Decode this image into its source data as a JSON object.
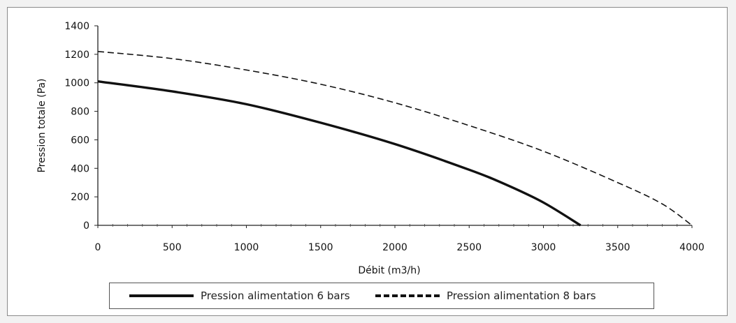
{
  "chart_data": {
    "type": "line",
    "title": "",
    "xlabel": "Débit (m3/h)",
    "ylabel": "Pression totale (Pa)",
    "xlim": [
      0,
      4000
    ],
    "ylim": [
      0,
      1400
    ],
    "xticks": [
      0,
      500,
      1000,
      1500,
      2000,
      2500,
      3000,
      3500,
      4000
    ],
    "yticks": [
      0,
      200,
      400,
      600,
      800,
      1000,
      1200,
      1400
    ],
    "grid": false,
    "legend_position": "bottom",
    "series": [
      {
        "name": "Pression alimentation 6 bars",
        "style": "solid",
        "color": "#111111",
        "x": [
          0,
          500,
          1000,
          1500,
          2000,
          2500,
          2750,
          3000,
          3250
        ],
        "y": [
          1010,
          940,
          850,
          720,
          570,
          390,
          285,
          160,
          0
        ]
      },
      {
        "name": "Pression alimentation 8 bars",
        "style": "dashed",
        "color": "#111111",
        "x": [
          0,
          500,
          1000,
          1500,
          2000,
          2500,
          3000,
          3500,
          3800,
          4000
        ],
        "y": [
          1220,
          1170,
          1090,
          990,
          860,
          700,
          520,
          300,
          150,
          0
        ]
      }
    ]
  }
}
